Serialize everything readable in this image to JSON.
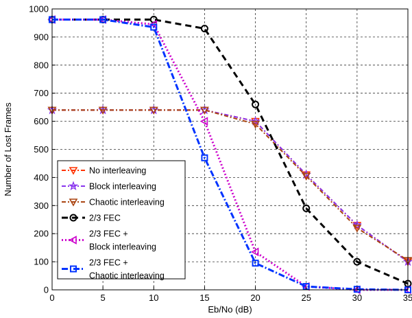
{
  "chart_data": {
    "type": "line",
    "title": "",
    "xlabel": "Eb/No (dB)",
    "ylabel": "Number of Lost Frames",
    "xlim": [
      0,
      35
    ],
    "ylim": [
      0,
      1000
    ],
    "xticks": [
      0,
      5,
      10,
      15,
      20,
      25,
      30,
      35
    ],
    "yticks": [
      0,
      100,
      200,
      300,
      400,
      500,
      600,
      700,
      800,
      900,
      1000
    ],
    "grid": true,
    "legend_position": "bottom-left",
    "x": [
      0,
      5,
      10,
      15,
      20,
      25,
      30,
      35
    ],
    "series": [
      {
        "name": "No interleaving",
        "values": [
          640,
          640,
          640,
          640,
          600,
          410,
          230,
          100
        ],
        "color": "#ff3300",
        "dash": "6,3,2,3",
        "marker": "triangle-down",
        "width": 2
      },
      {
        "name": "Block interleaving",
        "values": [
          640,
          640,
          640,
          640,
          600,
          410,
          230,
          100
        ],
        "color": "#8833ee",
        "dash": "6,3,2,3",
        "marker": "star",
        "width": 2
      },
      {
        "name": "Chaotic interleaving",
        "values": [
          640,
          640,
          640,
          640,
          590,
          405,
          220,
          105
        ],
        "color": "#aa4411",
        "dash": "6,3,2,3",
        "marker": "triangle-down",
        "width": 2
      },
      {
        "name": "2/3 FEC",
        "values": [
          962,
          962,
          962,
          930,
          660,
          290,
          100,
          22
        ],
        "color": "#000000",
        "dash": "9,6",
        "marker": "circle",
        "width": 3
      },
      {
        "name": "2/3 FEC + Block interleaving",
        "legend_lines": [
          "2/3 FEC +",
          "Block interleaving"
        ],
        "values": [
          962,
          962,
          945,
          600,
          135,
          12,
          0,
          0
        ],
        "color": "#cc00cc",
        "dash": "2,3",
        "marker": "triangle-left",
        "width": 3
      },
      {
        "name": "2/3 FEC + Chaotic interleaving",
        "legend_lines": [
          "2/3 FEC +",
          "Chaotic interleaving"
        ],
        "values": [
          962,
          962,
          935,
          470,
          95,
          12,
          2,
          0
        ],
        "color": "#0033ff",
        "dash": "9,3,2,3",
        "marker": "square",
        "width": 3
      }
    ]
  }
}
